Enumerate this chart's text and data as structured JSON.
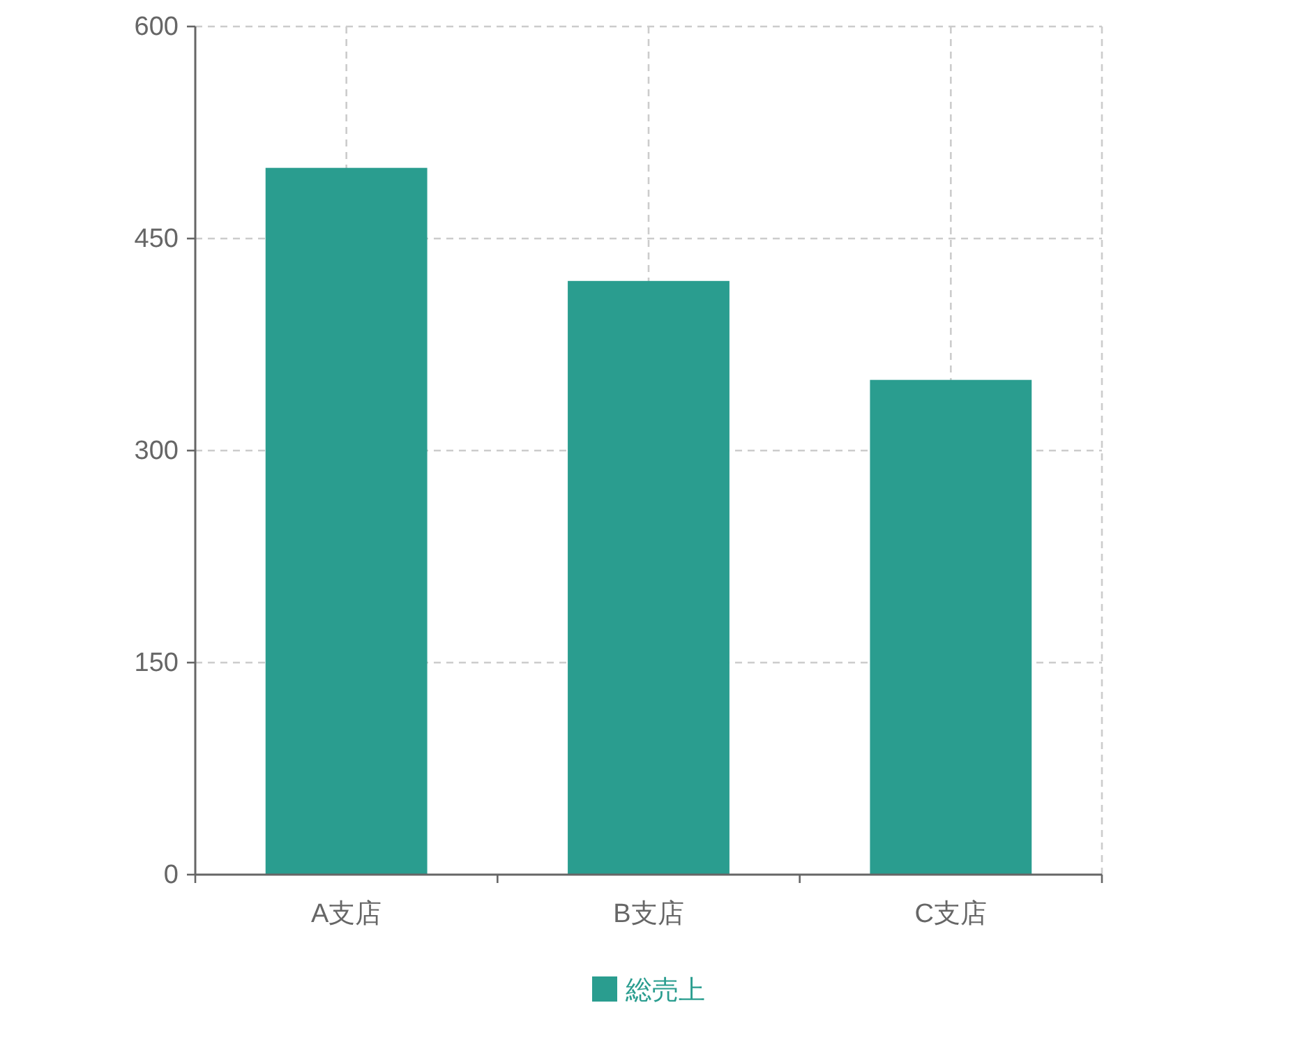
{
  "chart_data": {
    "type": "bar",
    "categories": [
      "A支店",
      "B支店",
      "C支店"
    ],
    "series": [
      {
        "name": "総売上",
        "color": "#2a9d8f",
        "values": [
          500,
          420,
          350
        ]
      }
    ],
    "ylim": [
      0,
      600
    ],
    "yticks": [
      0,
      150,
      300,
      450,
      600
    ],
    "grid": true,
    "legend": "bottom"
  }
}
